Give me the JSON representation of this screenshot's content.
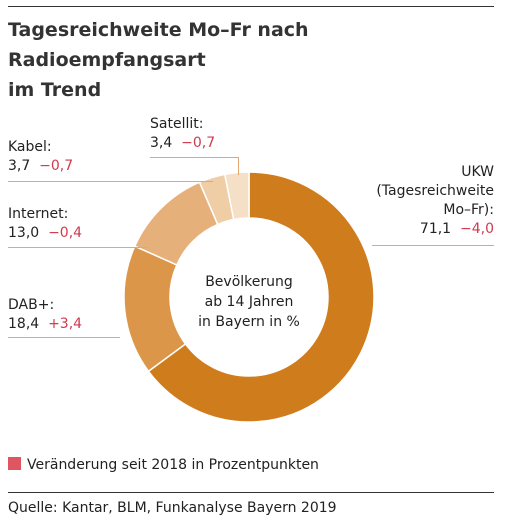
{
  "header": {
    "title_line1": "Tagesreichweite Mo–Fr nach Radioempfangsart",
    "title_line2": "im Trend"
  },
  "chart_data": {
    "type": "pie",
    "variant": "donut",
    "center_label": [
      "Bevölkerung",
      "ab 14 Jahren",
      "in Bayern in %"
    ],
    "slices": [
      {
        "name": "UKW (Tagesreichweite Mo–Fr)",
        "label_lines": [
          "UKW",
          "(Tagesreichweite",
          "Mo–Fr):"
        ],
        "value": 71.1,
        "value_text": "71,1",
        "change_text": "−4,0",
        "color": "#cf7d1c"
      },
      {
        "name": "DAB+",
        "label_lines": [
          "DAB+:"
        ],
        "value": 18.4,
        "value_text": "18,4",
        "change_text": "+3,4",
        "color": "#dc9649"
      },
      {
        "name": "Internet",
        "label_lines": [
          "Internet:"
        ],
        "value": 13.0,
        "value_text": "13,0",
        "change_text": "−0,4",
        "color": "#e6b07a"
      },
      {
        "name": "Kabel",
        "label_lines": [
          "Kabel:"
        ],
        "value": 3.7,
        "value_text": "3,7",
        "change_text": "−0,7",
        "color": "#efcda5"
      },
      {
        "name": "Satellit",
        "label_lines": [
          "Satellit:"
        ],
        "value": 3.4,
        "value_text": "3,4",
        "change_text": "−0,7",
        "color": "#f5dfc6"
      }
    ],
    "change_color": "#e05562"
  },
  "legend": {
    "change_label": "Veränderung seit 2018 in Prozentpunkten"
  },
  "footer": {
    "source": "Quelle: Kantar, BLM, Funkanalyse Bayern 2019"
  }
}
